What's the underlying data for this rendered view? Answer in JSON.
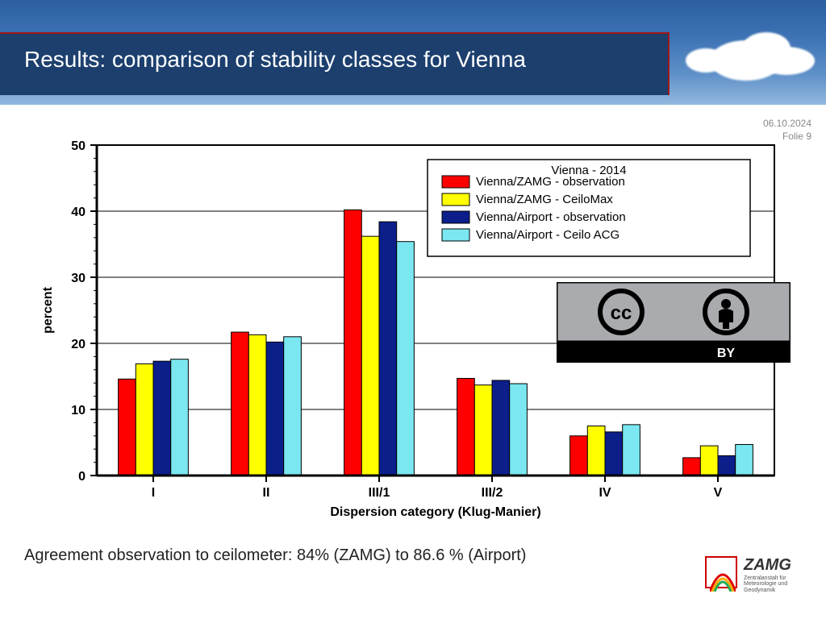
{
  "header": {
    "title": "Results: comparison of stability classes for Vienna"
  },
  "meta": {
    "date": "06.10.2024",
    "page": "Folie 9"
  },
  "chart": {
    "type": "bar",
    "title": "",
    "xlabel": "Dispersion category (Klug-Manier)",
    "ylabel": "percent",
    "categories": [
      "I",
      "II",
      "III/1",
      "III/2",
      "IV",
      "V"
    ],
    "series": [
      {
        "name": "Vienna/ZAMG - observation",
        "color": "#ff0000",
        "values": [
          14.6,
          21.7,
          40.2,
          14.7,
          6.0,
          2.7
        ]
      },
      {
        "name": "Vienna/ZAMG - CeiloMax",
        "color": "#ffff00",
        "values": [
          16.9,
          21.3,
          36.2,
          13.7,
          7.5,
          4.5
        ]
      },
      {
        "name": "Vienna/Airport - observation",
        "color": "#0b1e8a",
        "values": [
          17.3,
          20.2,
          38.4,
          14.4,
          6.6,
          3.0
        ]
      },
      {
        "name": "Vienna/Airport - Ceilo ACG",
        "color": "#7be7f0",
        "values": [
          17.6,
          21.0,
          35.4,
          13.9,
          7.7,
          4.7
        ]
      }
    ],
    "ylim": [
      0,
      50
    ],
    "ytick_step": 10,
    "bar_border": "#000000",
    "axis_color": "#000000",
    "grid_color": "#000000",
    "legend": {
      "title": "Vienna - 2014",
      "position": "upper-right",
      "border": "#000000",
      "bg": "#ffffff"
    },
    "plot_border": "#000000",
    "label_fontsize": 16,
    "tick_fontsize": 16
  },
  "footnote": "Agreement observation to ceilometer: 84% (ZAMG)  to 86.6 % (Airport)",
  "cc_badge": {
    "label": "BY",
    "bg": "#a9abae",
    "bar_bg": "#000000",
    "text_color": "#ffffff"
  },
  "logo": {
    "name": "ZAMG",
    "sub": "Zentralanstalt für\nMeteorologie und\nGeodynamik"
  }
}
